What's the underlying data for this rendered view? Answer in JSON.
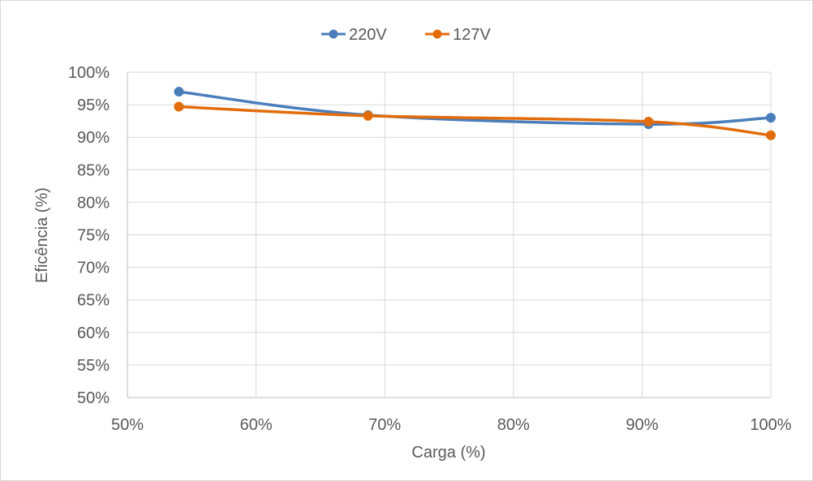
{
  "chart_data": {
    "type": "line",
    "title": "",
    "xlabel": "Carga (%)",
    "ylabel": "Eficência (%)",
    "xlim": [
      0.5,
      1.0
    ],
    "ylim": [
      0.5,
      1.0
    ],
    "x_ticks": [
      "50%",
      "60%",
      "70%",
      "80%",
      "90%",
      "100%"
    ],
    "y_ticks": [
      "50%",
      "55%",
      "60%",
      "65%",
      "70%",
      "75%",
      "80%",
      "85%",
      "90%",
      "95%",
      "100%"
    ],
    "grid": true,
    "legend_position": "top",
    "smooth": true,
    "series": [
      {
        "name": "220V",
        "color": "#4a7ebb",
        "x": [
          0.54,
          0.687,
          0.905,
          1.0
        ],
        "y": [
          0.97,
          0.934,
          0.92,
          0.93
        ]
      },
      {
        "name": "127V",
        "color": "#e36c0a",
        "x": [
          0.54,
          0.687,
          0.905,
          1.0
        ],
        "y": [
          0.947,
          0.933,
          0.924,
          0.903
        ]
      }
    ]
  }
}
